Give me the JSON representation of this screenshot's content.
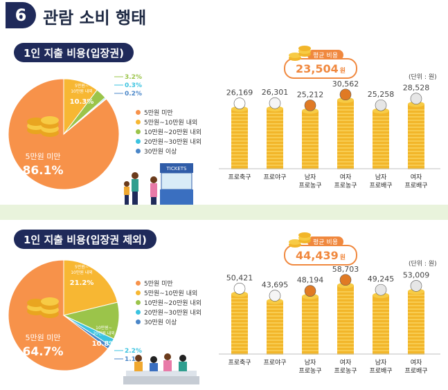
{
  "header": {
    "number": "6",
    "title": "관람 소비 행태"
  },
  "colors": {
    "navy": "#1f2a5a",
    "orange": "#f7924a",
    "yellow": "#f7b733",
    "green": "#9bc44a",
    "cyan": "#3bc3e0",
    "blue": "#4a86c8"
  },
  "sections": [
    {
      "title": "1인 지출 비용(입장권)",
      "avg_label": "평균 비용",
      "avg_value": "23,504",
      "avg_unit": "원",
      "unit_note": "(단위 : 원)",
      "legend": [
        "5만원 미만",
        "5만원~10만원 내외",
        "10만원~20만원 내외",
        "20만원~30만원 내외",
        "30만원 이상"
      ],
      "pie_labels": {
        "main_name": "5만원 미만",
        "main_value": "86.1",
        "main_unit": "%",
        "second_name": "5만원~\n10만원 내외",
        "second_value": "10.3",
        "second_unit": "%",
        "others": [
          "3.2%",
          "0.3%",
          "0.2%"
        ]
      }
    },
    {
      "title": "1인 지출 비용(입장권 제외)",
      "avg_label": "평균 비용",
      "avg_value": "44,439",
      "avg_unit": "원",
      "unit_note": "(단위 : 원)",
      "legend": [
        "5만원 미만",
        "5만원~10만원 내외",
        "10만원~20만원 내외",
        "20만원~30만원 내외",
        "30만원 이상"
      ],
      "pie_labels": {
        "main_name": "5만원 미만",
        "main_value": "64.7",
        "main_unit": "%",
        "second_name": "5만원~\n10만원 내외",
        "second_value": "21.2",
        "second_unit": "%",
        "third_name": "10만원~\n20만원 내외",
        "third_value": "10.8",
        "third_unit": "%",
        "others": [
          "2.2%",
          "1.1%"
        ]
      }
    }
  ],
  "chart_data": [
    {
      "type": "pie",
      "categories": [
        "5만원 미만",
        "5만원~10만원 내외",
        "10만원~20만원 내외",
        "20만원~30만원 내외",
        "30만원 이상"
      ],
      "values": [
        86.1,
        10.3,
        3.2,
        0.3,
        0.2
      ]
    },
    {
      "type": "bar",
      "categories": [
        "프로축구",
        "프로야구",
        "남자 프로농구",
        "여자 프로농구",
        "남자 프로배구",
        "여자 프로배구"
      ],
      "values": [
        26169,
        26301,
        25212,
        30562,
        25258,
        28528
      ],
      "value_labels": [
        "26,169",
        "26,301",
        "25,212",
        "30,562",
        "25,258",
        "28,528"
      ],
      "ball_types": [
        "soccer",
        "baseball",
        "basketball",
        "basketball",
        "volleyball",
        "volleyball"
      ]
    },
    {
      "type": "pie",
      "categories": [
        "5만원 미만",
        "5만원~10만원 내외",
        "10만원~20만원 내외",
        "20만원~30만원 내외",
        "30만원 이상"
      ],
      "values": [
        64.7,
        21.2,
        10.8,
        2.2,
        1.1
      ]
    },
    {
      "type": "bar",
      "categories": [
        "프로축구",
        "프로야구",
        "남자 프로농구",
        "여자 프로농구",
        "남자 프로배구",
        "여자 프로배구"
      ],
      "values": [
        50421,
        43695,
        48194,
        58703,
        49245,
        53009
      ],
      "value_labels": [
        "50,421",
        "43,695",
        "48,194",
        "58,703",
        "49,245",
        "53,009"
      ],
      "ball_types": [
        "soccer",
        "baseball",
        "basketball",
        "basketball",
        "volleyball",
        "volleyball"
      ]
    }
  ]
}
